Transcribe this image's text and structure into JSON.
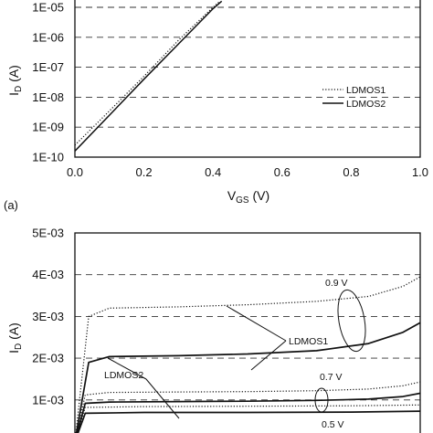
{
  "chart_data": [
    {
      "type": "line",
      "panel_label": "(a)",
      "xlabel": "V",
      "xlabel_sub": "GS",
      "xlabel_unit": " (V)",
      "ylabel": "I",
      "ylabel_sub": "D",
      "ylabel_unit": " (A)",
      "yscale": "log",
      "xlim": [
        0.0,
        1.0
      ],
      "ylim": [
        1e-10,
        1e-05
      ],
      "x_ticks": [
        "0.0",
        "0.2",
        "0.4",
        "0.6",
        "0.8",
        "1.0"
      ],
      "y_ticks": [
        "1E-10",
        "1E-09",
        "1E-08",
        "1E-07",
        "1E-06",
        "1E-05"
      ],
      "grid": "dashed horizontal",
      "legend_position": "lower-right",
      "series": [
        {
          "name": "LDMOS1",
          "style": "dotted",
          "x": [
            0.0,
            0.1,
            0.2,
            0.3,
            0.4,
            0.42
          ],
          "y": [
            2.5e-10,
            3.5e-09,
            5e-08,
            8e-07,
            1e-05,
            1.6e-05
          ]
        },
        {
          "name": "LDMOS2",
          "style": "solid",
          "x": [
            0.0,
            0.1,
            0.2,
            0.3,
            0.4,
            0.425
          ],
          "y": [
            1.6e-10,
            2.5e-09,
            4e-08,
            6e-07,
            9e-06,
            1.6e-05
          ]
        }
      ]
    },
    {
      "type": "line",
      "panel_label": "(a)",
      "ylabel": "I",
      "ylabel_sub": "D",
      "ylabel_unit": " (A)",
      "ylim": [
        0.0,
        0.005
      ],
      "y_ticks": [
        "1E-03",
        "2E-03",
        "3E-03",
        "4E-03",
        "5E-03"
      ],
      "grid": "dashed horizontal",
      "annotations": [
        "0.9 V",
        "0.7 V",
        "0.5 V",
        "LDMOS1",
        "LDMOS2"
      ],
      "series": [
        {
          "name": "LDMOS1",
          "vgs": "0.9 V",
          "style": "dotted",
          "x": [
            0.0,
            0.04,
            0.1,
            0.3,
            0.5,
            0.7,
            0.85,
            0.95,
            1.0
          ],
          "y": [
            0.0,
            0.003,
            0.0032,
            0.00323,
            0.00328,
            0.00336,
            0.00348,
            0.00372,
            0.00395
          ]
        },
        {
          "name": "LDMOS2",
          "vgs": "0.9 V",
          "style": "solid",
          "x": [
            0.0,
            0.04,
            0.1,
            0.3,
            0.5,
            0.7,
            0.85,
            0.95,
            1.0
          ],
          "y": [
            0.0,
            0.0019,
            0.00204,
            0.00206,
            0.0021,
            0.00218,
            0.00235,
            0.00262,
            0.00285
          ]
        },
        {
          "name": "LDMOS1",
          "vgs": "0.7 V",
          "style": "dotted",
          "x": [
            0.0,
            0.03,
            0.1,
            0.3,
            0.5,
            0.7,
            0.85,
            0.95,
            1.0
          ],
          "y": [
            0.0,
            0.00112,
            0.00118,
            0.00119,
            0.0012,
            0.00122,
            0.00126,
            0.00134,
            0.00143
          ]
        },
        {
          "name": "LDMOS2",
          "vgs": "0.7 V",
          "style": "solid",
          "x": [
            0.0,
            0.03,
            0.1,
            0.3,
            0.5,
            0.7,
            0.85,
            0.95,
            1.0
          ],
          "y": [
            0.0,
            0.00092,
            0.00095,
            0.00096,
            0.00097,
            0.00099,
            0.00102,
            0.00108,
            0.00116
          ]
        },
        {
          "name": "LDMOS1",
          "vgs": "0.5 V",
          "style": "dotted",
          "x": [
            0.0,
            0.03,
            0.2,
            0.5,
            0.8,
            1.0
          ],
          "y": [
            0.0,
            0.00082,
            0.00084,
            0.00085,
            0.00086,
            0.00088
          ]
        },
        {
          "name": "LDMOS2",
          "vgs": "0.5 V",
          "style": "solid",
          "x": [
            0.0,
            0.03,
            0.2,
            0.5,
            0.8,
            1.0
          ],
          "y": [
            0.0,
            0.00068,
            0.0007,
            0.0007,
            0.00071,
            0.00073
          ]
        }
      ]
    }
  ]
}
